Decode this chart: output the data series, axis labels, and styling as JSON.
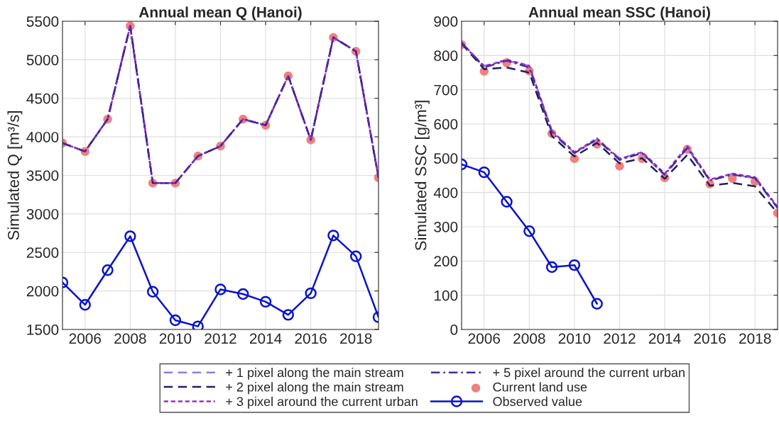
{
  "chart_data": [
    {
      "type": "line",
      "title": "Annual mean Q (Hanoi)",
      "ylabel": "Simulated Q [m³/s]",
      "x": [
        2005,
        2006,
        2007,
        2008,
        2009,
        2010,
        2011,
        2012,
        2013,
        2014,
        2015,
        2016,
        2017,
        2018,
        2019
      ],
      "xlim": [
        2005,
        2019
      ],
      "xticks": [
        2006,
        2008,
        2010,
        2012,
        2014,
        2016,
        2018
      ],
      "ylim": [
        1500,
        5500
      ],
      "yticks": [
        1500,
        2000,
        2500,
        3000,
        3500,
        4000,
        4500,
        5000,
        5500
      ],
      "grid": true,
      "legend": "bottom",
      "series": [
        {
          "name": "+ 1 pixel along the main stream",
          "color": "#8f80d8",
          "line_style": "dashed",
          "marker": "none",
          "values": [
            3920,
            3810,
            4230,
            5440,
            3400,
            3400,
            3750,
            3880,
            4230,
            4150,
            4790,
            3960,
            5290,
            5110,
            3470
          ]
        },
        {
          "name": "+ 2 pixel along the main stream",
          "color": "#1f1f5e",
          "line_style": "dashed",
          "marker": "none",
          "values": [
            3920,
            3810,
            4230,
            5440,
            3400,
            3400,
            3750,
            3880,
            4230,
            4150,
            4790,
            3960,
            5290,
            5110,
            3470
          ]
        },
        {
          "name": "+ 3 pixel around the current urban",
          "color": "#9b30c0",
          "line_style": "dotted",
          "marker": "none",
          "values": [
            3920,
            3810,
            4230,
            5440,
            3400,
            3400,
            3750,
            3880,
            4230,
            4150,
            4790,
            3960,
            5290,
            5110,
            3470
          ]
        },
        {
          "name": "+ 5 pixel around the current urban",
          "color": "#4b2a9e",
          "line_style": "dashdot",
          "marker": "none",
          "values": [
            3920,
            3810,
            4230,
            5440,
            3400,
            3400,
            3750,
            3880,
            4230,
            4150,
            4790,
            3960,
            5290,
            5110,
            3470
          ]
        },
        {
          "name": "Current land use",
          "type": "scatter",
          "color": "#f08080",
          "marker": "circle",
          "values": [
            3920,
            3810,
            4230,
            5440,
            3400,
            3400,
            3750,
            3880,
            4230,
            4150,
            4790,
            3960,
            5290,
            5110,
            3470
          ]
        },
        {
          "name": "Observed value",
          "color": "#0a14c8",
          "line_style": "solid",
          "marker": "circle",
          "values": [
            2110,
            1820,
            2270,
            2710,
            1990,
            1620,
            1540,
            2020,
            1960,
            1860,
            1690,
            1970,
            2720,
            2450,
            1660
          ]
        }
      ]
    },
    {
      "type": "line",
      "title": "Annual mean SSC (Hanoi)",
      "ylabel": "Simulated SSC [g/m³]",
      "x": [
        2005,
        2006,
        2007,
        2008,
        2009,
        2010,
        2011,
        2012,
        2013,
        2014,
        2015,
        2016,
        2017,
        2018,
        2019
      ],
      "xlim": [
        2005,
        2019
      ],
      "xticks": [
        2006,
        2008,
        2010,
        2012,
        2014,
        2016,
        2018
      ],
      "ylim": [
        0,
        900
      ],
      "yticks": [
        0,
        100,
        200,
        300,
        400,
        500,
        600,
        700,
        800,
        900
      ],
      "grid": true,
      "series": [
        {
          "name": "+ 1 pixel along the main stream",
          "color": "#8f80d8",
          "line_style": "dashed",
          "marker": "none",
          "values": [
            835,
            770,
            785,
            770,
            580,
            515,
            555,
            500,
            515,
            450,
            530,
            435,
            455,
            440,
            355
          ]
        },
        {
          "name": "+ 2 pixel along the main stream",
          "color": "#1f1f5e",
          "line_style": "dashed",
          "marker": "none",
          "values": [
            835,
            760,
            765,
            750,
            565,
            505,
            545,
            485,
            500,
            440,
            510,
            420,
            428,
            418,
            340
          ]
        },
        {
          "name": "+ 3 pixel around the current urban",
          "color": "#9b30c0",
          "line_style": "dotted",
          "marker": "none",
          "values": [
            838,
            768,
            788,
            770,
            580,
            518,
            558,
            498,
            518,
            455,
            535,
            438,
            455,
            445,
            358
          ]
        },
        {
          "name": "+ 5 pixel around the current urban",
          "color": "#4b2a9e",
          "line_style": "dashdot",
          "marker": "none",
          "values": [
            838,
            765,
            785,
            765,
            575,
            515,
            555,
            495,
            515,
            452,
            530,
            435,
            452,
            442,
            355
          ]
        },
        {
          "name": "Current land use",
          "type": "scatter",
          "color": "#f08080",
          "marker": "circle",
          "values": [
            832,
            754,
            779,
            755,
            572,
            499,
            541,
            477,
            499,
            443,
            526,
            425,
            441,
            432,
            340
          ]
        },
        {
          "name": "Observed value",
          "color": "#0a14c8",
          "line_style": "solid",
          "marker": "circle",
          "values": [
            482,
            459,
            373,
            287,
            182,
            188,
            75,
            null,
            null,
            null,
            null,
            null,
            null,
            null,
            null
          ]
        }
      ]
    }
  ]
}
